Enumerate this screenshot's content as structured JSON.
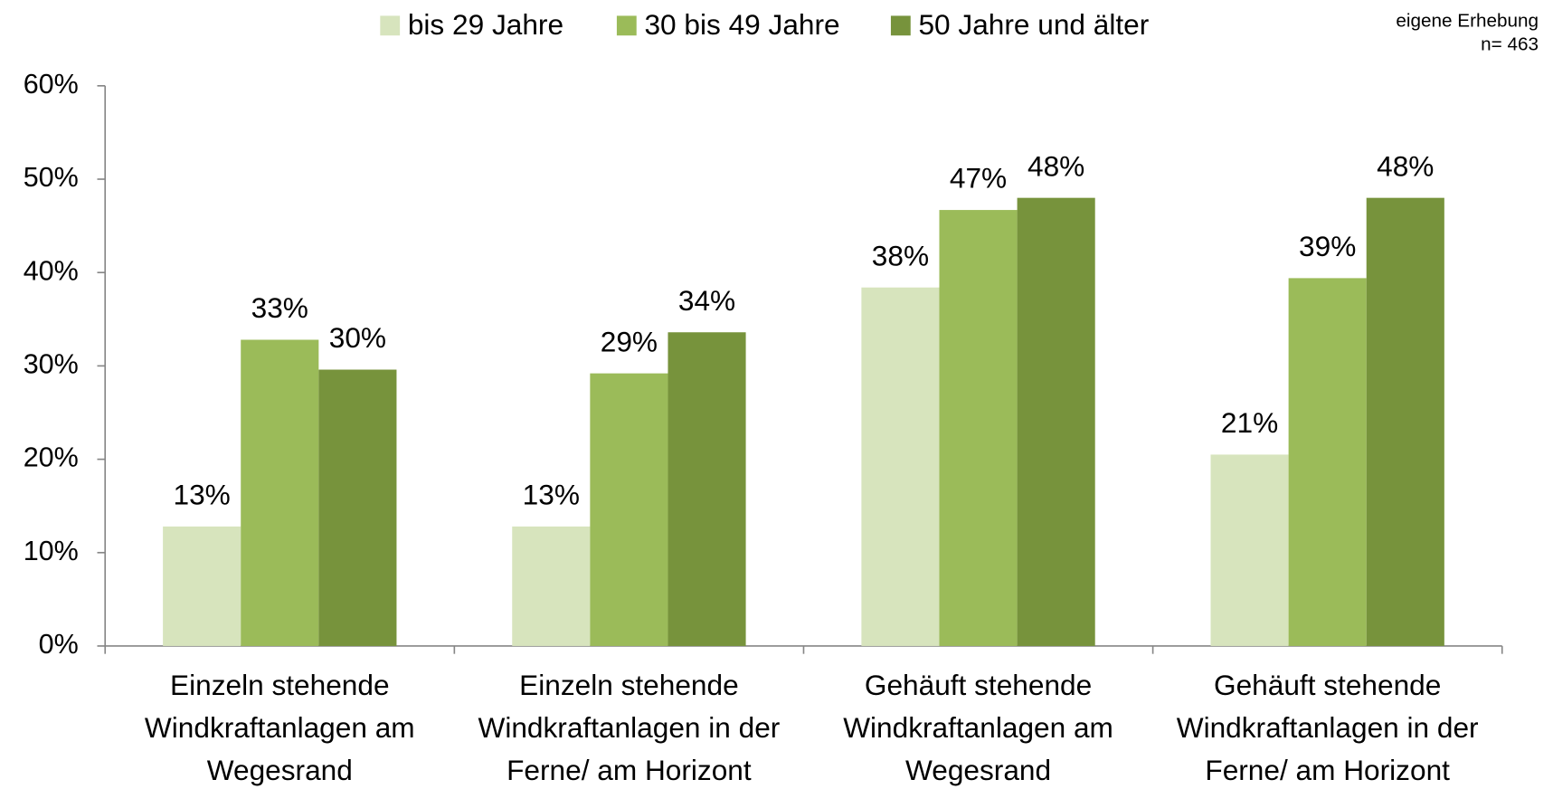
{
  "chart_data": {
    "type": "bar",
    "categories": [
      [
        "Einzeln stehende",
        "Windkraftanlagen am",
        "Wegesrand"
      ],
      [
        "Einzeln stehende",
        "Windkraftanlagen in der",
        "Ferne/ am Horizont"
      ],
      [
        "Gehäuft stehende",
        "Windkraftanlagen am",
        "Wegesrand"
      ],
      [
        "Gehäuft stehende",
        "Windkraftanlagen in der",
        "Ferne/ am Horizont"
      ]
    ],
    "series": [
      {
        "name": "bis 29 Jahre",
        "color": "#d7e4bd",
        "values": [
          12.8,
          12.8,
          38.4,
          20.5
        ],
        "value_labels": [
          "13%",
          "13%",
          "38%",
          "21%"
        ]
      },
      {
        "name": "30 bis 49 Jahre",
        "color": "#9bbb59",
        "values": [
          32.8,
          29.2,
          46.7,
          39.4
        ],
        "value_labels": [
          "33%",
          "29%",
          "47%",
          "39%"
        ]
      },
      {
        "name": "50 Jahre und älter",
        "color": "#77933c",
        "values": [
          29.6,
          33.6,
          48.0,
          48.0
        ],
        "value_labels": [
          "30%",
          "34%",
          "48%",
          "48%"
        ]
      }
    ],
    "ylim": [
      0,
      60
    ],
    "yticks": [
      {
        "value": 0,
        "label": "0%"
      },
      {
        "value": 10,
        "label": "10%"
      },
      {
        "value": 20,
        "label": "20%"
      },
      {
        "value": 30,
        "label": "30%"
      },
      {
        "value": 40,
        "label": "40%"
      },
      {
        "value": 50,
        "label": "50%"
      },
      {
        "value": 60,
        "label": "60%"
      }
    ],
    "notes": [
      "eigene Erhebung",
      "n= 463"
    ],
    "legend": "top",
    "grid": false
  }
}
